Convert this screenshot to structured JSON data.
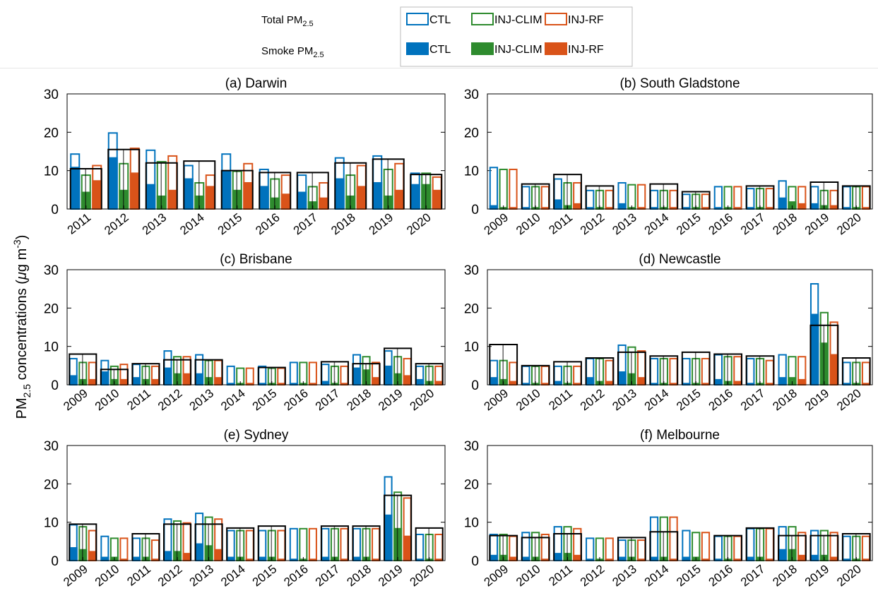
{
  "legend": {
    "total_label": "Total PM",
    "total_sub": "2.5",
    "smoke_label": "Smoke PM",
    "smoke_sub": "2.5",
    "entries": [
      {
        "name": "CTL",
        "color": "#0072BD"
      },
      {
        "name": "INJ-CLIM",
        "color": "#2E8B2E"
      },
      {
        "name": "INJ-RF",
        "color": "#D95319"
      }
    ]
  },
  "ylabel": {
    "prefix": "PM",
    "sub": "2.5",
    "suffix": " concentrations (",
    "mu": "μ",
    "unit": "g m",
    "sup": "-3",
    "close": ")"
  },
  "chart_data": [
    {
      "type": "bar",
      "title": "(a) Darwin",
      "ylim": [
        0,
        30
      ],
      "yticks": [
        0,
        10,
        20,
        30
      ],
      "categories": [
        "2011",
        "2012",
        "2013",
        "2014",
        "2015",
        "2016",
        "2017",
        "2018",
        "2019",
        "2020"
      ],
      "total": {
        "CTL": [
          14.5,
          20,
          15.5,
          11.5,
          14.5,
          10.5,
          9,
          13.5,
          14,
          9.5
        ],
        "INJ-CLIM": [
          9,
          12,
          12.5,
          7,
          10,
          8,
          6,
          9,
          10.5,
          9.5
        ],
        "INJ-RF": [
          11.5,
          16,
          14,
          9,
          12,
          9,
          7,
          11.5,
          12,
          8.5
        ]
      },
      "smoke": {
        "CTL": [
          11,
          13.5,
          6.5,
          8,
          10,
          6,
          4.5,
          8,
          7,
          6.5
        ],
        "INJ-CLIM": [
          4.5,
          5,
          3.5,
          3.5,
          5,
          3,
          2,
          3.5,
          3.5,
          6.5
        ],
        "INJ-RF": [
          7.5,
          9.5,
          5,
          6,
          7,
          4,
          3,
          6,
          5,
          5
        ]
      },
      "obs": [
        10.5,
        15.5,
        12,
        12.5,
        10,
        9.5,
        9.5,
        12,
        13,
        9
      ]
    },
    {
      "type": "bar",
      "title": "(b) South Gladstone",
      "ylim": [
        0,
        30
      ],
      "yticks": [
        0,
        10,
        20,
        30
      ],
      "categories": [
        "2009",
        "2010",
        "2011",
        "2012",
        "2013",
        "2014",
        "2015",
        "2016",
        "2017",
        "2018",
        "2019",
        "2020"
      ],
      "total": {
        "CTL": [
          11,
          6,
          8,
          5,
          7,
          5,
          4,
          6,
          5.5,
          7.5,
          6,
          6
        ],
        "INJ-CLIM": [
          10.5,
          6,
          7,
          5,
          6.5,
          5,
          4,
          6,
          5.5,
          6,
          5,
          6
        ],
        "INJ-RF": [
          10.5,
          6,
          7,
          5,
          6.5,
          5,
          4,
          6,
          5.5,
          6,
          5,
          6
        ]
      },
      "smoke": {
        "CTL": [
          1,
          0.5,
          2.5,
          0.5,
          1.5,
          0.5,
          0.5,
          0.5,
          0.5,
          3,
          1.5,
          0.5
        ],
        "INJ-CLIM": [
          0.5,
          0.5,
          1,
          0.5,
          0.5,
          0.5,
          0.5,
          0.5,
          0.5,
          2,
          1,
          0.5
        ],
        "INJ-RF": [
          0.5,
          0.5,
          1.5,
          0.5,
          0.5,
          0.5,
          0.5,
          0.5,
          0.5,
          1.5,
          1,
          0.5
        ]
      },
      "obs": [
        null,
        6.5,
        9,
        6,
        null,
        6.5,
        4.5,
        null,
        6,
        null,
        7,
        6
      ]
    },
    {
      "type": "bar",
      "title": "(c) Brisbane",
      "ylim": [
        0,
        30
      ],
      "yticks": [
        0,
        10,
        20,
        30
      ],
      "categories": [
        "2009",
        "2010",
        "2011",
        "2012",
        "2013",
        "2014",
        "2015",
        "2016",
        "2017",
        "2018",
        "2019",
        "2020"
      ],
      "total": {
        "CTL": [
          7,
          6.5,
          5.5,
          9,
          8,
          5,
          5,
          6,
          5.5,
          8,
          9,
          5
        ],
        "INJ-CLIM": [
          6,
          5,
          5,
          7.5,
          6.5,
          4.5,
          4.5,
          6,
          5,
          7.5,
          7.5,
          5
        ],
        "INJ-RF": [
          6,
          5.5,
          5,
          7.5,
          6.5,
          4.5,
          4.5,
          6,
          5,
          6,
          7,
          5
        ]
      },
      "smoke": {
        "CTL": [
          2.5,
          3.5,
          2,
          4.5,
          3,
          0.5,
          0.5,
          0.5,
          1,
          4.5,
          5,
          1.5
        ],
        "INJ-CLIM": [
          1.5,
          1.5,
          1.5,
          3,
          2,
          0.5,
          0.5,
          0.5,
          0.5,
          4,
          3,
          1
        ],
        "INJ-RF": [
          1.5,
          1.5,
          1.5,
          3,
          2,
          0.5,
          0.5,
          0.5,
          0.5,
          2,
          2.5,
          1
        ]
      },
      "obs": [
        8,
        4,
        5.5,
        6.5,
        6.5,
        null,
        4.5,
        null,
        6,
        5.5,
        9.5,
        5.5
      ]
    },
    {
      "type": "bar",
      "title": "(d) Newcastle",
      "ylim": [
        0,
        30
      ],
      "yticks": [
        0,
        10,
        20,
        30
      ],
      "categories": [
        "2009",
        "2010",
        "2011",
        "2012",
        "2013",
        "2014",
        "2015",
        "2016",
        "2017",
        "2018",
        "2019",
        "2020"
      ],
      "total": {
        "CTL": [
          6.5,
          5,
          5,
          7,
          10.5,
          7,
          7,
          8,
          7,
          8,
          26.5,
          6
        ],
        "INJ-CLIM": [
          6.5,
          5,
          5,
          7,
          10,
          7,
          7,
          7.5,
          7,
          7.5,
          19,
          6
        ],
        "INJ-RF": [
          6,
          5,
          5,
          6.5,
          9,
          7,
          7,
          7.5,
          6.5,
          7.5,
          16.5,
          6
        ]
      },
      "smoke": {
        "CTL": [
          2,
          0.5,
          1,
          2,
          3.5,
          0.5,
          0.5,
          1.5,
          0.5,
          2,
          18.5,
          0.5
        ],
        "INJ-CLIM": [
          1.5,
          0.5,
          0.5,
          1,
          3,
          0.5,
          0.5,
          1,
          0.5,
          2,
          11,
          0.5
        ],
        "INJ-RF": [
          1,
          0.5,
          0.5,
          1,
          2,
          0.5,
          0.5,
          1,
          0.5,
          1.5,
          8,
          0.5
        ]
      },
      "obs": [
        10.5,
        5,
        6,
        7,
        8.5,
        7.5,
        8.5,
        8,
        7.5,
        null,
        15.5,
        7
      ]
    },
    {
      "type": "bar",
      "title": "(e) Sydney",
      "ylim": [
        0,
        30
      ],
      "yticks": [
        0,
        10,
        20,
        30
      ],
      "categories": [
        "2009",
        "2010",
        "2011",
        "2012",
        "2013",
        "2014",
        "2015",
        "2016",
        "2017",
        "2018",
        "2019",
        "2020"
      ],
      "total": {
        "CTL": [
          9.5,
          6.5,
          6,
          11,
          12.5,
          8,
          8,
          8.5,
          8.5,
          8.5,
          22,
          7
        ],
        "INJ-CLIM": [
          9,
          6,
          6,
          10.5,
          11.5,
          8,
          8,
          8.5,
          8.5,
          8.5,
          18,
          7
        ],
        "INJ-RF": [
          8,
          6,
          5.5,
          10,
          11,
          8,
          8,
          8.5,
          8.5,
          8.5,
          16.5,
          7
        ]
      },
      "smoke": {
        "CTL": [
          3.5,
          1,
          1,
          2.5,
          4.5,
          1,
          1,
          0.5,
          1,
          1,
          12,
          0.5
        ],
        "INJ-CLIM": [
          3,
          1,
          1,
          2.5,
          4,
          1,
          1,
          0.5,
          1,
          1,
          8.5,
          0.5
        ],
        "INJ-RF": [
          2.5,
          0.5,
          0.5,
          2,
          3,
          0.5,
          0.5,
          0.5,
          0.5,
          0.5,
          6.5,
          0.5
        ]
      },
      "obs": [
        9.5,
        null,
        7,
        9.5,
        9.5,
        8.5,
        9,
        null,
        9,
        9,
        17,
        8.5
      ]
    },
    {
      "type": "bar",
      "title": "(f) Melbourne",
      "ylim": [
        0,
        30
      ],
      "yticks": [
        0,
        10,
        20,
        30
      ],
      "categories": [
        "2009",
        "2010",
        "2011",
        "2012",
        "2013",
        "2014",
        "2015",
        "2016",
        "2017",
        "2018",
        "2019",
        "2020"
      ],
      "total": {
        "CTL": [
          7,
          7.5,
          9,
          6,
          5.5,
          11.5,
          8,
          6.5,
          8.5,
          9,
          8,
          6.5
        ],
        "INJ-CLIM": [
          7,
          7.5,
          9,
          6,
          5.5,
          11.5,
          7.5,
          6.5,
          8.5,
          9,
          8,
          6.5
        ],
        "INJ-RF": [
          6.5,
          7,
          8.5,
          6,
          5.5,
          11.5,
          7.5,
          6.5,
          8.5,
          7.5,
          7.5,
          6.5
        ]
      },
      "smoke": {
        "CTL": [
          1.5,
          1,
          2,
          0.5,
          1,
          1,
          1,
          0.5,
          1,
          3,
          1.5,
          0.5
        ],
        "INJ-CLIM": [
          1.5,
          1,
          2,
          0.5,
          1,
          1,
          1,
          0.5,
          1,
          3,
          1.5,
          0.5
        ],
        "INJ-RF": [
          1,
          0.5,
          1.5,
          0.5,
          0.5,
          0.5,
          0.5,
          0.5,
          0.5,
          1.5,
          1,
          0.5
        ]
      },
      "obs": [
        6.5,
        6,
        7,
        null,
        6,
        7.5,
        null,
        6.5,
        8.5,
        6.5,
        6.5,
        7
      ]
    }
  ]
}
